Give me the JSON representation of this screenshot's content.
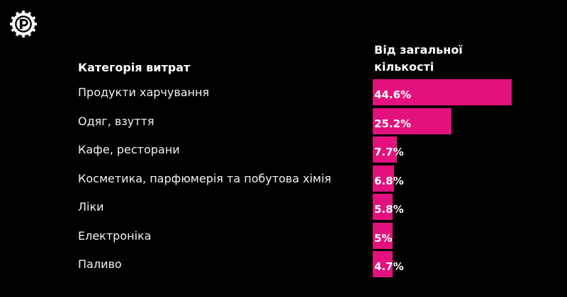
{
  "header": {
    "category_label": "Категорія витрат",
    "value_label": "Від загальної кількості"
  },
  "colors": {
    "bar": "#e3117d",
    "background": "#000000"
  },
  "logo": {
    "icon": "gear-circle-logo-icon"
  },
  "chart_data": {
    "type": "bar",
    "orientation": "horizontal",
    "categories": [
      "Продукти харчування",
      "Одяг, взуття",
      "Кафе, ресторани",
      "Косметика, парфюмерія та побутова хімія",
      "Ліки",
      "Електроніка",
      "Паливо"
    ],
    "values": [
      44.6,
      25.2,
      7.7,
      6.8,
      5.8,
      5,
      4.7
    ],
    "value_labels": [
      "44.6%",
      "25.2%",
      "7.7%",
      "6.8%",
      "5.8%",
      "5%",
      "4.7%"
    ],
    "title": "",
    "xlabel": "",
    "ylabel": ""
  }
}
